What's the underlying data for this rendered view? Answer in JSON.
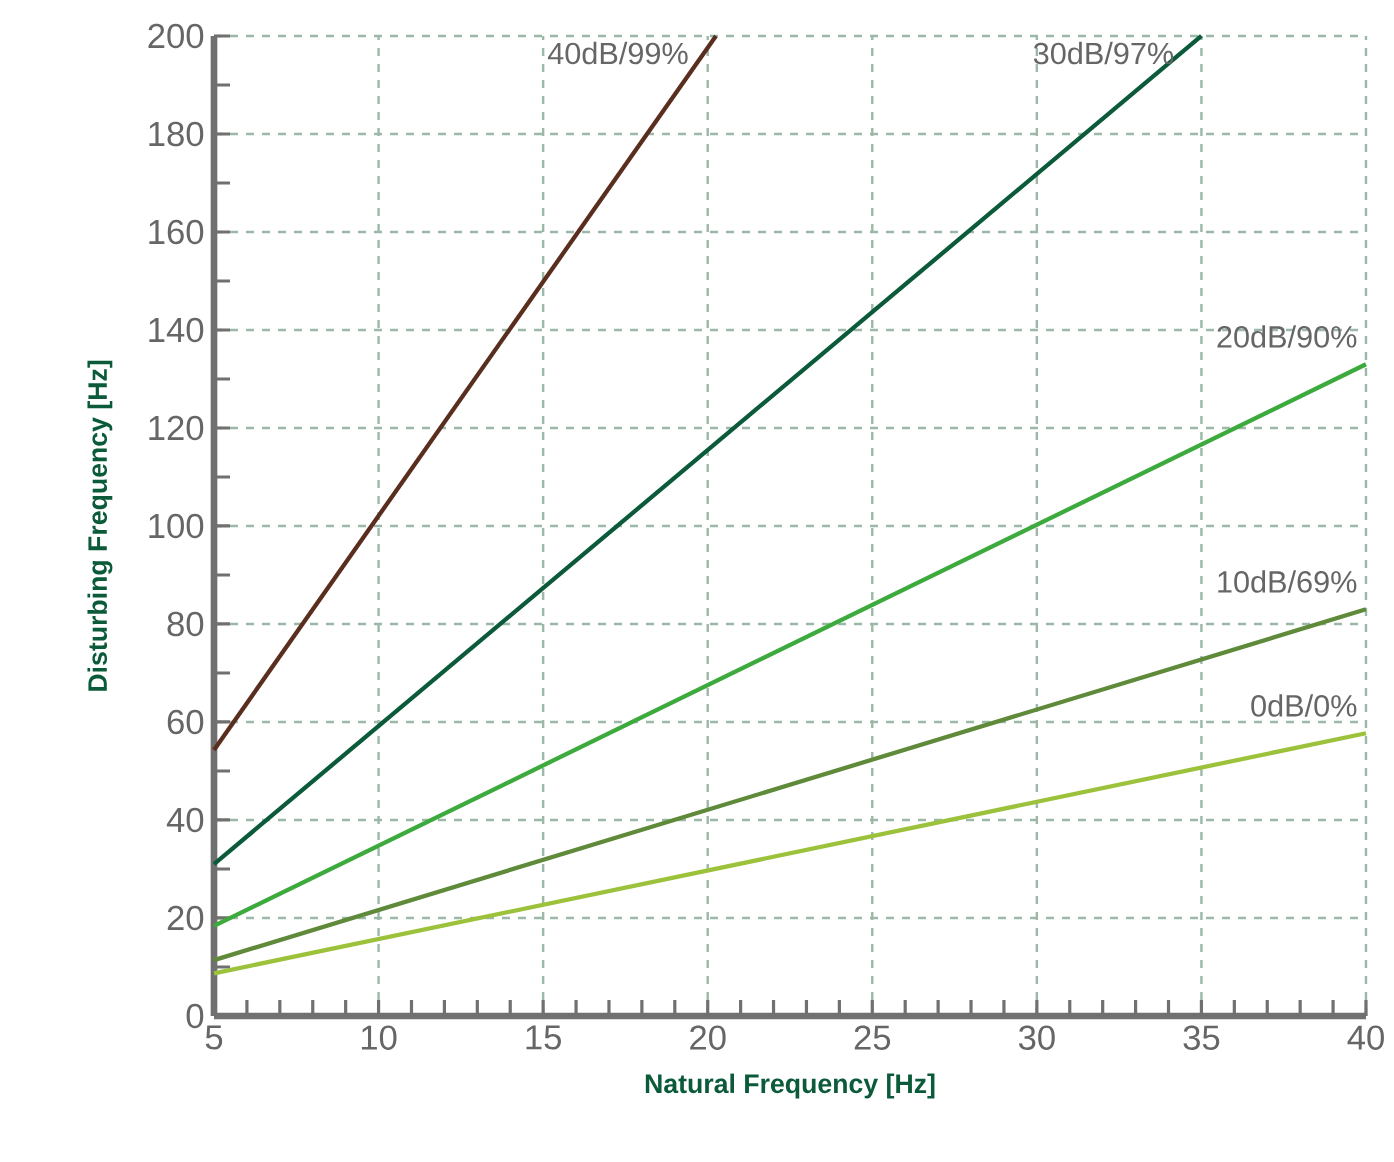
{
  "chart_data": {
    "type": "line",
    "xlabel": "Natural Frequency [Hz]",
    "ylabel": "Disturbing Frequency [Hz]",
    "xlim": [
      5,
      40
    ],
    "xticks": [
      5,
      10,
      15,
      20,
      25,
      30,
      35,
      40
    ],
    "ylim": [
      0,
      200
    ],
    "yticks": [
      0,
      20,
      40,
      60,
      80,
      100,
      120,
      140,
      160,
      180,
      200
    ],
    "grid": true,
    "legend": false,
    "marker": "none",
    "line_style": "solid",
    "series": [
      {
        "name": "40dB/99%",
        "color": "#5a2e1e",
        "x": [
          5,
          20.25
        ],
        "values": [
          54.3,
          200
        ]
      },
      {
        "name": "30dB/97%",
        "color": "#0b5a3a",
        "x": [
          5,
          35
        ],
        "values": [
          31,
          200
        ]
      },
      {
        "name": "20dB/90%",
        "color": "#3caa3c",
        "x": [
          5,
          40
        ],
        "values": [
          18.4,
          133
        ]
      },
      {
        "name": "10dB/69%",
        "color": "#5e8a3a",
        "x": [
          5,
          40
        ],
        "values": [
          11.4,
          83
        ]
      },
      {
        "name": "0dB/0%",
        "color": "#9cc23c",
        "x": [
          5,
          40
        ],
        "values": [
          8.7,
          57.7
        ]
      }
    ]
  }
}
